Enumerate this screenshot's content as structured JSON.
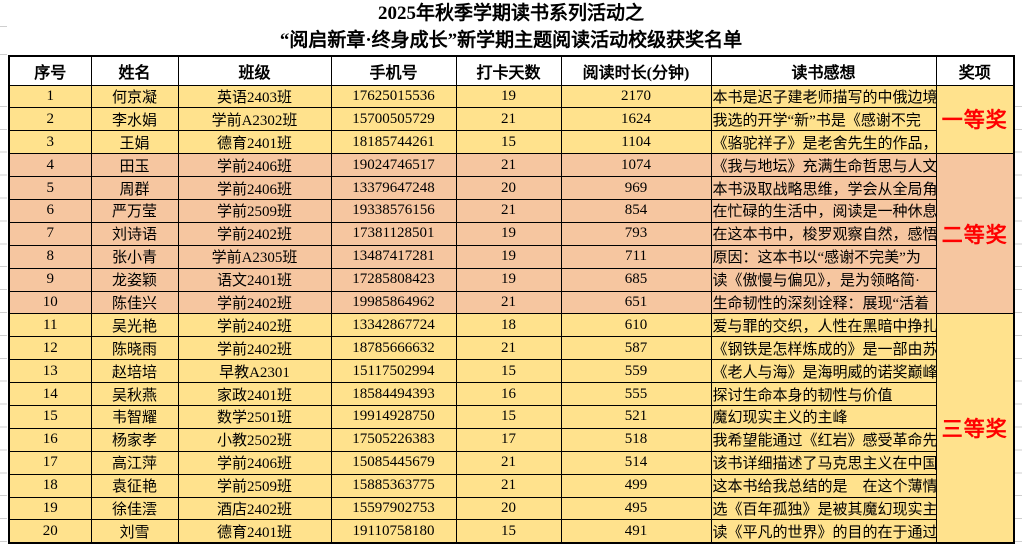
{
  "title": {
    "line1": "2025年秋季学期读书系列活动之",
    "line2": "“阅启新章·终身成长”新学期主题阅读活动校级获奖名单"
  },
  "table": {
    "columns": [
      "序号",
      "姓名",
      "班级",
      "手机号",
      "打卡天数",
      "阅读时长(分钟)",
      "读书感想",
      "奖项"
    ],
    "rows": [
      {
        "no": "1",
        "name": "何京凝",
        "class": "英语2403班",
        "phone": "17625015536",
        "days": "19",
        "minutes": "2170",
        "note": "本书是迟子建老师描写的中俄边境"
      },
      {
        "no": "2",
        "name": "李水娟",
        "class": "学前A2302班",
        "phone": "15700505729",
        "days": "21",
        "minutes": "1624",
        "note": "我选的开学“新”书是《感谢不完"
      },
      {
        "no": "3",
        "name": "王娟",
        "class": "德育2401班",
        "phone": "18185744261",
        "days": "15",
        "minutes": "1104",
        "note": "《骆驼祥子》是老舍先生的作品，"
      },
      {
        "no": "4",
        "name": "田玉",
        "class": "学前2406班",
        "phone": "19024746517",
        "days": "21",
        "minutes": "1074",
        "note": "《我与地坛》充满生命哲思与人文"
      },
      {
        "no": "5",
        "name": "周群",
        "class": "学前2406班",
        "phone": "13379647248",
        "days": "20",
        "minutes": "969",
        "note": "本书汲取战略思维，学会从全局角"
      },
      {
        "no": "6",
        "name": "严万莹",
        "class": "学前2509班",
        "phone": "19338576156",
        "days": "21",
        "minutes": "854",
        "note": "在忙碌的生活中，阅读是一种休息"
      },
      {
        "no": "7",
        "name": "刘诗语",
        "class": "学前2402班",
        "phone": "17381128501",
        "days": "19",
        "minutes": "793",
        "note": "在这本书中，梭罗观察自然，感悟"
      },
      {
        "no": "8",
        "name": "张小青",
        "class": "学前A2305班",
        "phone": "13487417281",
        "days": "19",
        "minutes": "711",
        "note": "原因：这本书以“感谢不完美”为"
      },
      {
        "no": "9",
        "name": "龙姿颖",
        "class": "语文2401班",
        "phone": "17285808423",
        "days": "19",
        "minutes": "685",
        "note": "读《傲慢与偏见》，是为领略简·"
      },
      {
        "no": "10",
        "name": "陈佳兴",
        "class": "学前2402班",
        "phone": "19985864962",
        "days": "21",
        "minutes": "651",
        "note": "生命韧性的深刻诠释：展现“活着"
      },
      {
        "no": "11",
        "name": "吴光艳",
        "class": "学前2402班",
        "phone": "13342867724",
        "days": "18",
        "minutes": "610",
        "note": "爱与罪的交织，人性在黑暗中挣扎"
      },
      {
        "no": "12",
        "name": "陈晓雨",
        "class": "学前2402班",
        "phone": "18785666632",
        "days": "21",
        "minutes": "587",
        "note": "《钢铁是怎样炼成的》是一部由苏"
      },
      {
        "no": "13",
        "name": "赵培培",
        "class": "早教A2301",
        "phone": "15117502994",
        "days": "15",
        "minutes": "559",
        "note": "《老人与海》是海明威的诺奖巅峰"
      },
      {
        "no": "14",
        "name": "吴秋燕",
        "class": "家政2401班",
        "phone": "18584494393",
        "days": "16",
        "minutes": "555",
        "note": "探讨生命本身的韧性与价值"
      },
      {
        "no": "15",
        "name": "韦智耀",
        "class": "数学2501班",
        "phone": "19914928750",
        "days": "15",
        "minutes": "521",
        "note": "魔幻现实主义的主峰"
      },
      {
        "no": "16",
        "name": "杨家孝",
        "class": "小教2502班",
        "phone": "17505226383",
        "days": "17",
        "minutes": "518",
        "note": "我希望能通过《红岩》感受革命先"
      },
      {
        "no": "17",
        "name": "高江萍",
        "class": "学前2406班",
        "phone": "15085445679",
        "days": "21",
        "minutes": "514",
        "note": "该书详细描述了马克思主义在中国"
      },
      {
        "no": "18",
        "name": "袁征艳",
        "class": "学前2509班",
        "phone": "15885363775",
        "days": "21",
        "minutes": "499",
        "note": "这本书给我总结的是　在这个薄情"
      },
      {
        "no": "19",
        "name": "徐佳澐",
        "class": "酒店2402班",
        "phone": "15597902753",
        "days": "20",
        "minutes": "495",
        "note": "选《百年孤独》是被其魔幻现实主"
      },
      {
        "no": "20",
        "name": "刘雪",
        "class": "德育2401班",
        "phone": "19110758180",
        "days": "15",
        "minutes": "491",
        "note": "读《平凡的世界》的目的在于通过"
      }
    ],
    "awards": [
      {
        "label": "一等奖",
        "from": 1,
        "to": 3,
        "bg": "#FFE28D"
      },
      {
        "label": "二等奖",
        "from": 4,
        "to": 10,
        "bg": "#F6C6A0"
      },
      {
        "label": "三等奖",
        "from": 11,
        "to": 20,
        "bg": "#FFE28D"
      }
    ]
  },
  "colors": {
    "first_prize_bg": "#FFE28D",
    "second_prize_bg": "#F6C6A0",
    "third_prize_bg": "#FFE28D",
    "award_text": "#FF0000",
    "grid_border": "#000000"
  }
}
